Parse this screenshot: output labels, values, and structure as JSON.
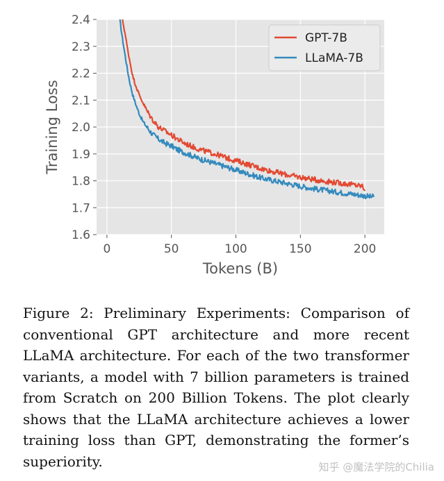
{
  "chart_data": {
    "type": "line",
    "title": "",
    "xlabel": "Tokens (B)",
    "ylabel": "Training Loss",
    "xlim": [
      -8,
      215
    ],
    "ylim": [
      1.6,
      2.4
    ],
    "xticks": [
      "0",
      "50",
      "100",
      "150",
      "200"
    ],
    "yticks": [
      "1.6",
      "1.7",
      "1.8",
      "1.9",
      "2.0",
      "2.1",
      "2.2",
      "2.3",
      "2.4"
    ],
    "grid": true,
    "legend_position": "top-right",
    "colors": {
      "background": "#e5e5e5",
      "grid": "#ffffff"
    },
    "series": [
      {
        "name": "GPT-7B",
        "color": "#e24a33",
        "x": [
          12,
          14,
          16,
          18,
          20,
          22,
          25,
          28,
          31,
          35,
          40,
          45,
          50,
          55,
          60,
          65,
          70,
          75,
          80,
          85,
          90,
          95,
          100,
          110,
          120,
          130,
          140,
          150,
          160,
          170,
          180,
          190,
          198,
          200
        ],
        "y": [
          2.4,
          2.35,
          2.29,
          2.24,
          2.19,
          2.16,
          2.12,
          2.09,
          2.06,
          2.03,
          2.0,
          1.985,
          1.97,
          1.955,
          1.94,
          1.93,
          1.92,
          1.912,
          1.905,
          1.898,
          1.89,
          1.882,
          1.875,
          1.86,
          1.845,
          1.833,
          1.822,
          1.813,
          1.805,
          1.798,
          1.792,
          1.786,
          1.78,
          1.768
        ]
      },
      {
        "name": "LLaMA-7B",
        "color": "#348abd",
        "x": [
          10,
          12,
          14,
          16,
          18,
          20,
          22,
          25,
          28,
          31,
          35,
          40,
          45,
          50,
          55,
          60,
          65,
          70,
          75,
          80,
          85,
          90,
          95,
          100,
          110,
          120,
          130,
          140,
          150,
          160,
          170,
          180,
          190,
          200,
          205,
          207
        ],
        "y": [
          2.4,
          2.33,
          2.27,
          2.21,
          2.16,
          2.12,
          2.09,
          2.05,
          2.02,
          2.0,
          1.975,
          1.955,
          1.94,
          1.93,
          1.915,
          1.905,
          1.895,
          1.885,
          1.877,
          1.87,
          1.862,
          1.855,
          1.848,
          1.84,
          1.825,
          1.81,
          1.8,
          1.79,
          1.78,
          1.771,
          1.764,
          1.757,
          1.751,
          1.744,
          1.74,
          1.742
        ]
      }
    ]
  },
  "caption": "Figure 2: Preliminary Experiments: Comparison of conventional GPT architecture and more recent LLaMA architecture. For each of the two transformer variants, a model with 7 billion parameters is trained from Scratch on 200 Billion Tokens. The plot clearly shows that the LLaMA architecture achieves a lower training loss than GPT, demonstrating the former’s superiority.",
  "watermark": "知乎 @魔法学院的Chilia"
}
